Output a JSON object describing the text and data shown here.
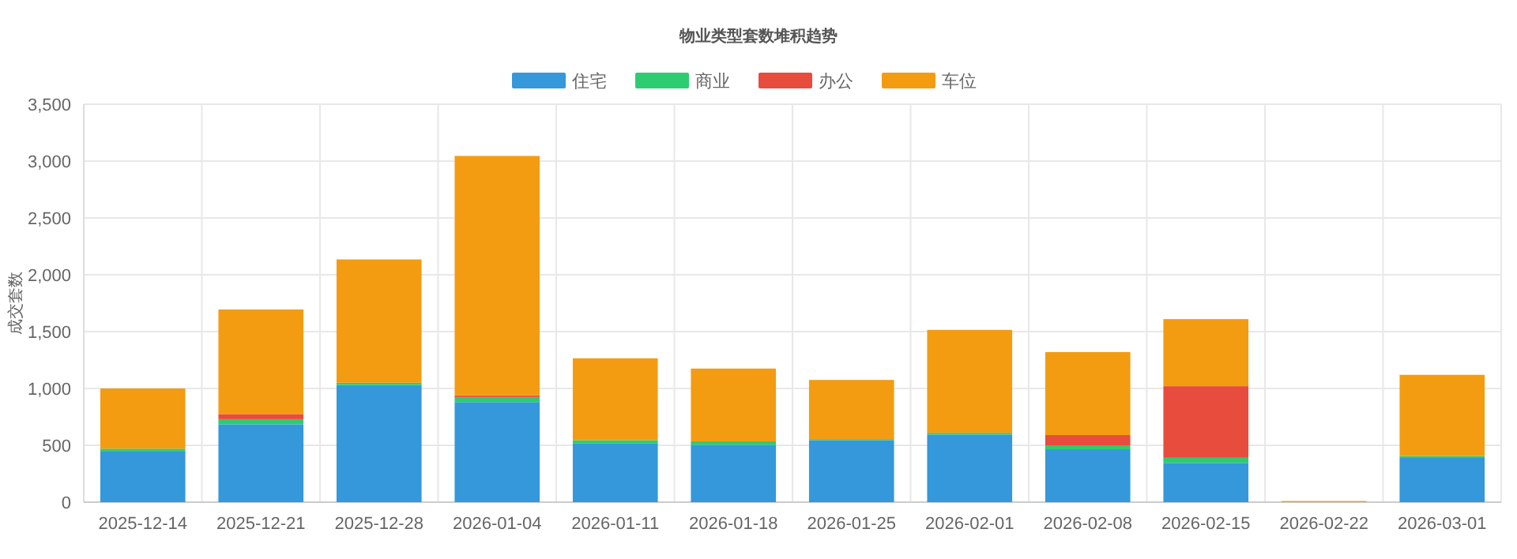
{
  "chart_data": {
    "type": "bar",
    "title": "物业类型套数堆积趋势",
    "ylabel": "成交套数",
    "stacked": true,
    "legend": "top",
    "grid": true,
    "categories": [
      "2025-12-14",
      "2025-12-21",
      "2025-12-28",
      "2026-01-04",
      "2026-01-11",
      "2026-01-18",
      "2026-01-25",
      "2026-02-01",
      "2026-02-08",
      "2026-02-15",
      "2026-02-22",
      "2026-03-01"
    ],
    "ylim": [
      0,
      3500
    ],
    "yticks": [
      {
        "value": 0,
        "label": "0"
      },
      {
        "value": 500,
        "label": "500"
      },
      {
        "value": 1000,
        "label": "1,000"
      },
      {
        "value": 1500,
        "label": "1,500"
      },
      {
        "value": 2000,
        "label": "2,000"
      },
      {
        "value": 2500,
        "label": "2,500"
      },
      {
        "value": 3000,
        "label": "3,000"
      },
      {
        "value": 3500,
        "label": "3,500"
      }
    ],
    "series": [
      {
        "name": "住宅",
        "color": "#3498db",
        "values": [
          450,
          685,
          1030,
          880,
          515,
          505,
          545,
          595,
          465,
          345,
          null,
          395
        ]
      },
      {
        "name": "商业",
        "color": "#2ecc71",
        "values": [
          20,
          45,
          20,
          45,
          30,
          30,
          10,
          15,
          35,
          45,
          0,
          10
        ]
      },
      {
        "name": "办公",
        "color": "#e74c3c",
        "values": [
          0,
          45,
          0,
          15,
          0,
          0,
          0,
          0,
          90,
          630,
          0,
          0
        ]
      },
      {
        "name": "车位",
        "color": "#f39c12",
        "values": [
          530,
          920,
          1085,
          2105,
          720,
          640,
          520,
          905,
          730,
          590,
          10,
          715
        ]
      }
    ]
  }
}
